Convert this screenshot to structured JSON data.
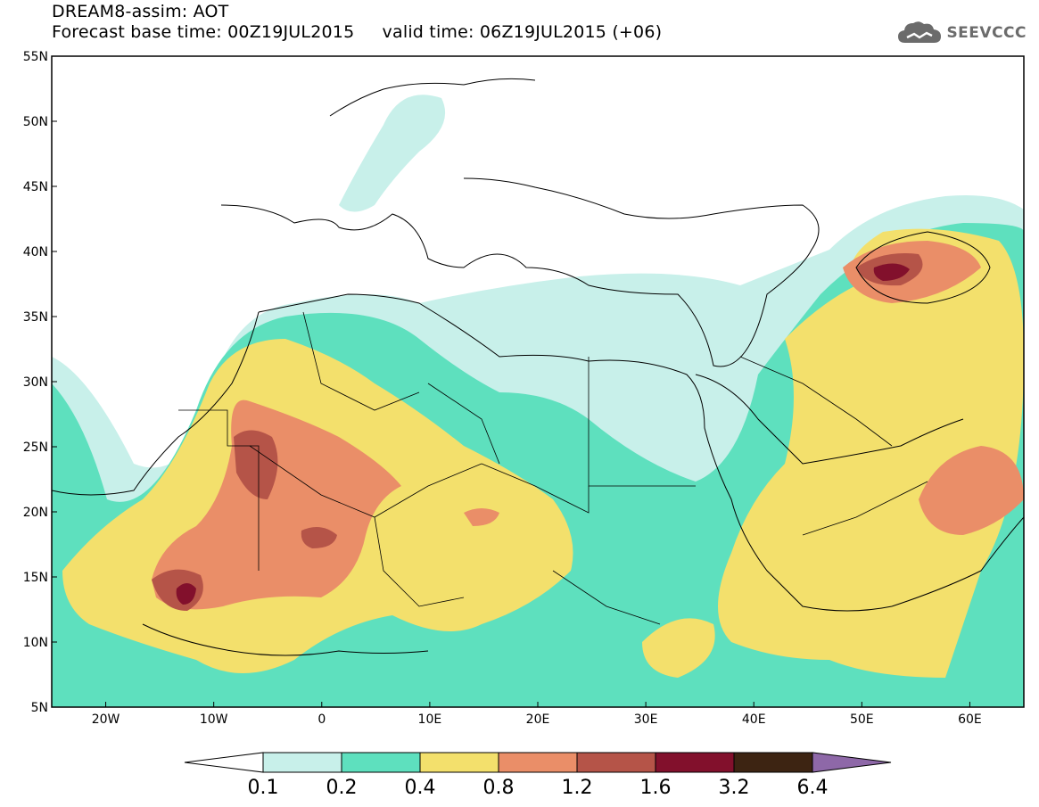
{
  "header": {
    "line1": "DREAM8-assim: AOT",
    "line2": "Forecast base time: 00Z19JUL2015     valid time: 06Z19JUL2015 (+06)"
  },
  "logo": {
    "text": "SEEVCCC",
    "icon": "cloud-icon"
  },
  "map": {
    "lat_ticks": [
      "55N",
      "50N",
      "45N",
      "40N",
      "35N",
      "30N",
      "25N",
      "20N",
      "15N",
      "10N",
      "5N"
    ],
    "lon_ticks": [
      "20W",
      "10W",
      "0",
      "10E",
      "20E",
      "30E",
      "40E",
      "50E",
      "60E"
    ],
    "lat_range": [
      5,
      55
    ],
    "lon_range": [
      -25,
      65
    ]
  },
  "colorbar": {
    "labels": [
      "0.1",
      "0.2",
      "0.4",
      "0.8",
      "1.2",
      "1.6",
      "3.2",
      "6.4"
    ],
    "colors": [
      "#c8f0ea",
      "#5ee0be",
      "#f3e06c",
      "#ea8e68",
      "#b55448",
      "#82102c",
      "#3d2412",
      "#8e68a8"
    ],
    "low_end_color": "#ffffff"
  },
  "colors": {
    "ocean": "#ffffff",
    "coast": "#000000"
  }
}
